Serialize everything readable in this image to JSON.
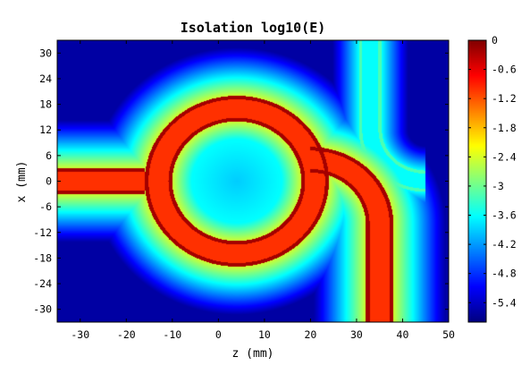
{
  "chart_data": {
    "type": "heatmap",
    "title": "Isolation log10(E)",
    "xlabel": "z (mm)",
    "ylabel": "x (mm)",
    "xlim": [
      -35,
      50
    ],
    "ylim": [
      -33,
      33
    ],
    "xticks": [
      -30,
      -20,
      -10,
      0,
      10,
      20,
      30,
      40,
      50
    ],
    "yticks": [
      30,
      24,
      18,
      12,
      6,
      0,
      -6,
      -12,
      -18,
      -24,
      -30
    ],
    "colorbar": {
      "range": [
        -5.8,
        0
      ],
      "ticks": [
        0,
        -0.6,
        -1.2,
        -1.8,
        -2.4,
        -3,
        -3.6,
        -4.2,
        -4.8,
        -5.4
      ],
      "colormap": "jet"
    },
    "structures": {
      "input_waveguide": {
        "x_center": 0,
        "width": 6,
        "z_from": -35,
        "z_to": -16,
        "value": -1.0
      },
      "ring": {
        "center_z": 4,
        "center_x": 0,
        "radius": 17,
        "width": 6,
        "value": -1.0
      },
      "output_waveguide": {
        "bend_center_z": 20,
        "bend_center_x": -10,
        "bend_radius": 15,
        "width": 6,
        "vertical_z": 35,
        "value": -1.0
      },
      "weak_coupler": {
        "bend_center_z": 45,
        "bend_center_x": 12,
        "bend_radius": 12,
        "width": 5,
        "vertical_z": 35,
        "value": -3.5
      }
    }
  }
}
